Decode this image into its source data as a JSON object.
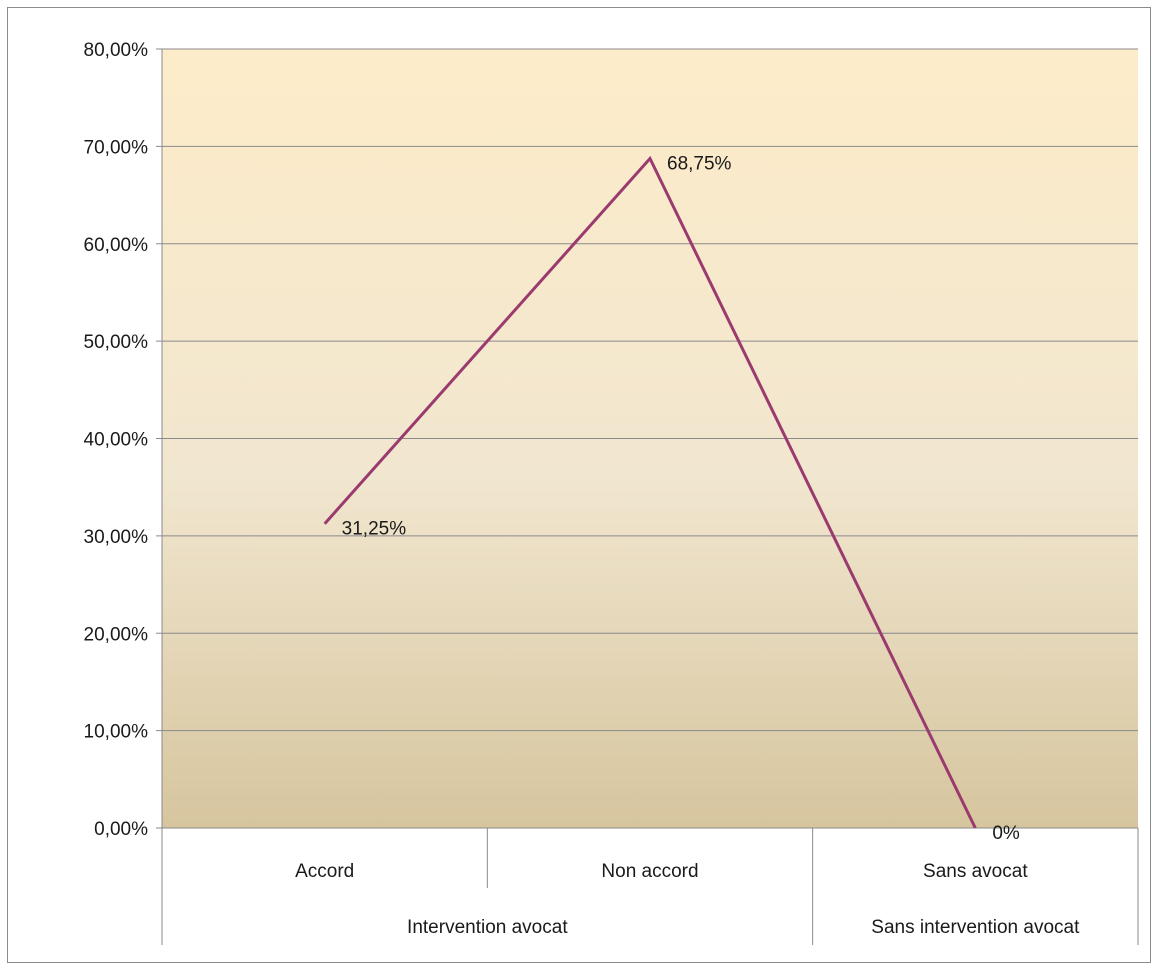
{
  "chart_data": {
    "type": "line",
    "categories": [
      "Accord",
      "Non accord",
      "Sans avocat"
    ],
    "category_groups": [
      {
        "label": "Intervention avocat",
        "span": 2
      },
      {
        "label": "Sans intervention avocat",
        "span": 1
      }
    ],
    "series": [
      {
        "values": [
          31.25,
          68.75,
          0
        ],
        "data_labels": [
          "31,25%",
          "68,75%",
          "0%"
        ],
        "color": "#9b3a6e"
      }
    ],
    "ylim": [
      0,
      80
    ],
    "y_ticks": [
      0,
      10,
      20,
      30,
      40,
      50,
      60,
      70,
      80
    ],
    "y_tick_labels": [
      "0,00%",
      "10,00%",
      "20,00%",
      "30,00%",
      "40,00%",
      "50,00%",
      "60,00%",
      "70,00%",
      "80,00%"
    ],
    "grid": true,
    "legend": "none",
    "plot_background": {
      "top": "#fdecc9",
      "bottom": "#d6c59e"
    }
  }
}
